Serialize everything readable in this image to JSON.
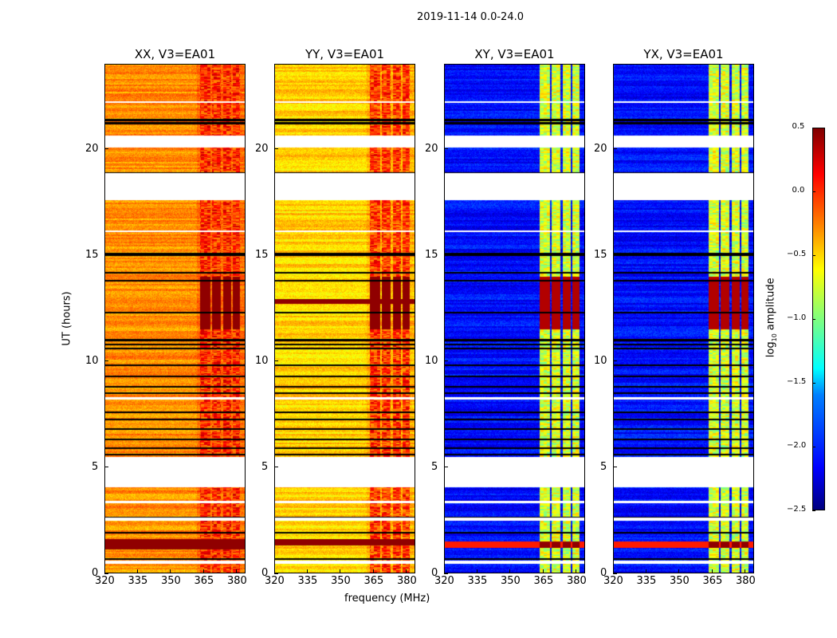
{
  "chart_data": {
    "type": "heatmap",
    "title": "2019-11-14 0.0-24.0",
    "xlabel": "frequency (MHz)",
    "ylabel": "UT (hours)",
    "xlim": [
      320,
      384
    ],
    "ylim": [
      0,
      24
    ],
    "xticks": [
      320,
      335,
      350,
      365,
      380
    ],
    "yticks": [
      0,
      5,
      10,
      15,
      20
    ],
    "colorbar": {
      "label_prefix": "log",
      "label_sub": "10",
      "label_suffix": " amplitude",
      "range": [
        -2.5,
        0.5
      ],
      "ticks": [
        "0.5",
        "0.0",
        "−0.5",
        "−1.0",
        "−1.5",
        "−2.0",
        "−2.5"
      ],
      "tick_values": [
        0.5,
        0,
        -0.5,
        -1,
        -1.5,
        -2,
        -2.5
      ],
      "colormap": "jet"
    },
    "panels": [
      {
        "title": "XX, V3=EA01",
        "base": -0.3,
        "band": 0.0,
        "burst": 0.45,
        "flare_rows": [
          [
            1.1,
            1.6
          ]
        ]
      },
      {
        "title": "YY, V3=EA01",
        "base": -0.5,
        "band": -0.05,
        "burst": 0.45,
        "flare_rows": [
          [
            1.3,
            1.6
          ],
          [
            12.7,
            12.95
          ]
        ]
      },
      {
        "title": "XY, V3=EA01",
        "base": -2.1,
        "band": -0.75,
        "burst": 0.35,
        "flare_rows": [
          [
            1.2,
            1.5
          ]
        ]
      },
      {
        "title": "YX, V3=EA01",
        "base": -2.1,
        "band": -0.75,
        "burst": 0.35,
        "flare_rows": [
          [
            1.2,
            1.5
          ]
        ]
      }
    ],
    "band_mhz": [
      [
        363.5,
        368
      ],
      [
        369,
        373
      ],
      [
        374,
        377.5
      ],
      [
        378.5,
        381.5
      ]
    ],
    "burst_hours": [
      11.5,
      14.0
    ],
    "flagged_gaps_hours": [
      [
        17.6,
        18.9
      ],
      [
        20.1,
        20.65
      ],
      [
        4.05,
        5.5
      ],
      [
        2.45,
        2.6
      ],
      [
        0.45,
        0.6
      ],
      [
        8.2,
        8.3
      ],
      [
        22.2,
        22.3
      ],
      [
        16.1,
        16.2
      ],
      [
        3.3,
        3.4
      ]
    ],
    "dark_lines_hours": [
      21.4,
      21.25,
      18.9,
      15.1,
      15.0,
      14.2,
      11.0,
      10.8,
      10.6,
      9.8,
      9.3,
      8.8,
      8.5,
      7.6,
      7.25,
      6.8,
      6.3,
      5.9,
      5.6,
      2.6,
      1.9,
      0.65,
      13.8,
      12.3
    ]
  }
}
